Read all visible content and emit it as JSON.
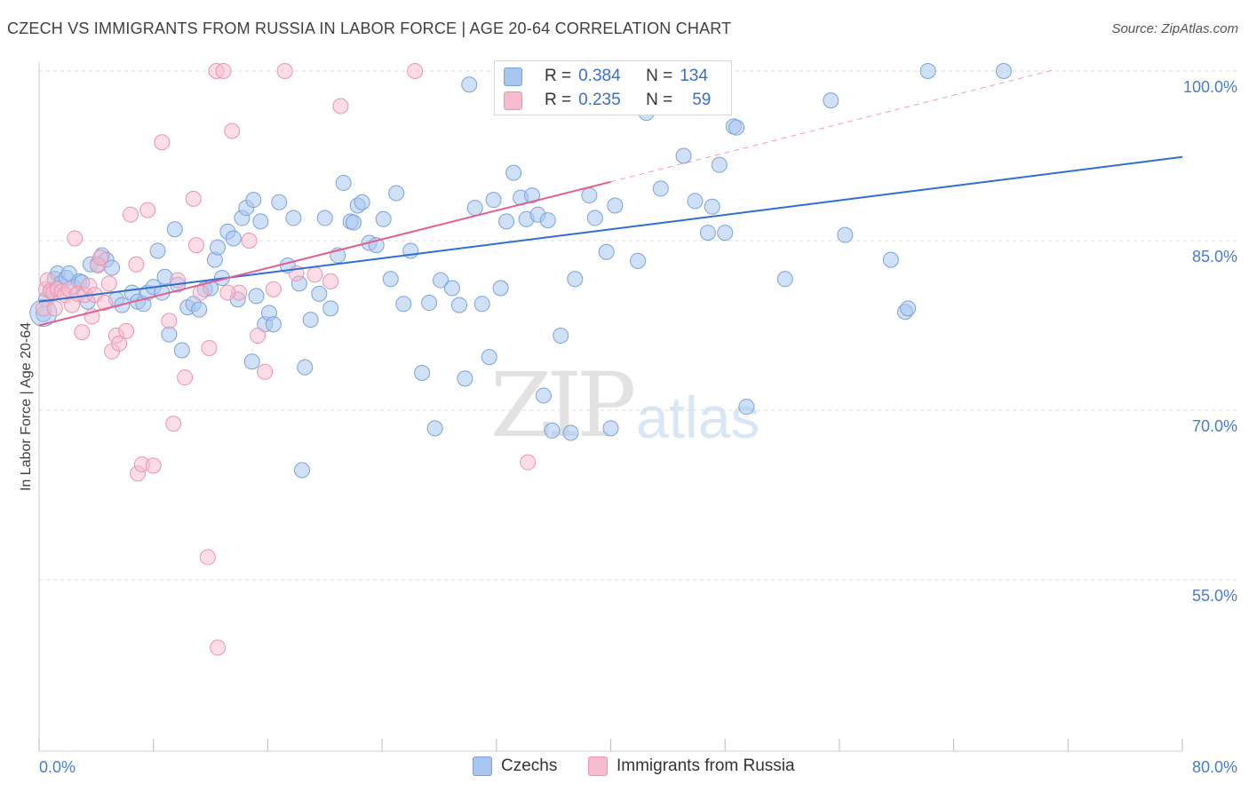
{
  "title": "CZECH VS IMMIGRANTS FROM RUSSIA IN LABOR FORCE | AGE 20-64 CORRELATION CHART",
  "source": "Source: ZipAtlas.com",
  "watermark": {
    "zip": "ZIP",
    "atlas": "atlas"
  },
  "legend": {
    "czechs": {
      "r_label": "R = ",
      "r_value": "0.384",
      "n_label": "N = ",
      "n_value": "134"
    },
    "russia": {
      "r_label": "R = ",
      "r_value": "0.235",
      "n_label": "N = ",
      "n_value": "59"
    }
  },
  "colors": {
    "czech_fill": "#a9c6ee",
    "czech_stroke": "#7aa3dc",
    "czech_line": "#2f6fd0",
    "russia_fill": "#f6bccd",
    "russia_stroke": "#ee93b0",
    "russia_line": "#e35e8c"
  },
  "chart_data": {
    "type": "scatter",
    "title": "CZECH VS IMMIGRANTS FROM RUSSIA IN LABOR FORCE | AGE 20-64 CORRELATION CHART",
    "xlabel": "",
    "ylabel": "In Labor Force | Age 20-64",
    "xlim": [
      0,
      80
    ],
    "ylim": [
      40,
      102
    ],
    "x_tick_labels": [
      "0.0%",
      "80.0%"
    ],
    "y_ticks": [
      55,
      70,
      85,
      100
    ],
    "y_tick_labels": [
      "55.0%",
      "70.0%",
      "85.0%",
      "100.0%"
    ],
    "legend_position": "top-center",
    "series": [
      {
        "name": "Czechs",
        "trend": {
          "x0": 0,
          "y0": 79.6,
          "x1": 80,
          "y1": 92.4
        },
        "points": [
          [
            0.3,
            78.5
          ],
          [
            0.5,
            79.8
          ],
          [
            0.8,
            80.6
          ],
          [
            1.1,
            81.6
          ],
          [
            1.3,
            82.1
          ],
          [
            1.5,
            81.2
          ],
          [
            1.9,
            81.7
          ],
          [
            2.1,
            82.1
          ],
          [
            2.4,
            80.9
          ],
          [
            2.8,
            81.4
          ],
          [
            3.0,
            81.3
          ],
          [
            3.4,
            79.6
          ],
          [
            3.6,
            82.9
          ],
          [
            4.1,
            82.9
          ],
          [
            4.4,
            83.7
          ],
          [
            4.7,
            83.3
          ],
          [
            5.1,
            82.6
          ],
          [
            5.4,
            79.8
          ],
          [
            5.8,
            79.3
          ],
          [
            6.5,
            80.4
          ],
          [
            6.9,
            79.6
          ],
          [
            7.3,
            79.4
          ],
          [
            7.6,
            80.4
          ],
          [
            8.0,
            80.9
          ],
          [
            8.3,
            84.1
          ],
          [
            8.6,
            80.4
          ],
          [
            8.8,
            81.8
          ],
          [
            9.1,
            76.7
          ],
          [
            9.5,
            86.0
          ],
          [
            9.7,
            81.1
          ],
          [
            10.0,
            75.3
          ],
          [
            10.4,
            79.1
          ],
          [
            10.8,
            79.4
          ],
          [
            11.2,
            78.9
          ],
          [
            11.6,
            80.7
          ],
          [
            12.0,
            80.8
          ],
          [
            12.3,
            83.3
          ],
          [
            12.5,
            84.4
          ],
          [
            12.8,
            81.7
          ],
          [
            13.2,
            85.8
          ],
          [
            13.6,
            85.2
          ],
          [
            13.9,
            79.8
          ],
          [
            14.2,
            87.0
          ],
          [
            14.5,
            87.9
          ],
          [
            14.9,
            74.3
          ],
          [
            15.2,
            80.1
          ],
          [
            15.5,
            86.7
          ],
          [
            15.8,
            77.6
          ],
          [
            16.1,
            78.6
          ],
          [
            16.4,
            77.6
          ],
          [
            16.8,
            88.4
          ],
          [
            17.4,
            82.8
          ],
          [
            17.8,
            87.0
          ],
          [
            18.2,
            81.2
          ],
          [
            18.6,
            73.8
          ],
          [
            19.0,
            78.0
          ],
          [
            19.6,
            80.3
          ],
          [
            20.0,
            87.0
          ],
          [
            20.4,
            79.0
          ],
          [
            20.9,
            83.7
          ],
          [
            21.3,
            90.1
          ],
          [
            21.8,
            86.7
          ],
          [
            22.0,
            86.6
          ],
          [
            22.3,
            88.1
          ],
          [
            22.6,
            88.4
          ],
          [
            23.1,
            84.8
          ],
          [
            23.6,
            84.6
          ],
          [
            24.1,
            86.9
          ],
          [
            24.6,
            81.6
          ],
          [
            25.0,
            89.2
          ],
          [
            25.5,
            79.4
          ],
          [
            26.0,
            84.1
          ],
          [
            26.8,
            73.3
          ],
          [
            27.3,
            79.5
          ],
          [
            27.7,
            68.4
          ],
          [
            28.1,
            81.5
          ],
          [
            28.9,
            80.8
          ],
          [
            29.4,
            79.3
          ],
          [
            29.8,
            72.8
          ],
          [
            30.1,
            98.8
          ],
          [
            30.5,
            87.9
          ],
          [
            31.0,
            79.4
          ],
          [
            31.5,
            74.7
          ],
          [
            31.8,
            88.6
          ],
          [
            32.3,
            80.8
          ],
          [
            32.7,
            86.7
          ],
          [
            33.2,
            91.0
          ],
          [
            33.7,
            88.8
          ],
          [
            34.1,
            86.9
          ],
          [
            34.5,
            89.0
          ],
          [
            34.9,
            87.3
          ],
          [
            35.3,
            71.3
          ],
          [
            35.6,
            86.8
          ],
          [
            35.9,
            68.2
          ],
          [
            36.5,
            76.6
          ],
          [
            37.2,
            68.0
          ],
          [
            37.5,
            81.6
          ],
          [
            38.5,
            89.0
          ],
          [
            38.9,
            87.0
          ],
          [
            39.7,
            84.0
          ],
          [
            40.0,
            68.4
          ],
          [
            40.3,
            88.1
          ],
          [
            41.3,
            100.2
          ],
          [
            41.9,
            83.2
          ],
          [
            42.5,
            96.3
          ],
          [
            42.9,
            100.0
          ],
          [
            43.5,
            89.6
          ],
          [
            44.4,
            97.0
          ],
          [
            45.1,
            92.5
          ],
          [
            45.9,
            88.5
          ],
          [
            46.3,
            100.2
          ],
          [
            46.8,
            85.7
          ],
          [
            47.1,
            88.0
          ],
          [
            47.6,
            91.7
          ],
          [
            48.0,
            85.7
          ],
          [
            48.6,
            95.1
          ],
          [
            48.8,
            95.0
          ],
          [
            49.5,
            70.3
          ],
          [
            52.2,
            81.6
          ],
          [
            55.4,
            97.4
          ],
          [
            56.4,
            85.5
          ],
          [
            59.6,
            83.3
          ],
          [
            60.6,
            78.7
          ],
          [
            60.8,
            79.0
          ],
          [
            62.2,
            100.0
          ],
          [
            67.5,
            100.0
          ],
          [
            18.4,
            64.7
          ],
          [
            15.0,
            88.6
          ]
        ]
      },
      {
        "name": "Immigrants from Russia",
        "trend": {
          "x0": 0,
          "y0": 77.5,
          "x1": 40,
          "y1": 90.2
        },
        "trend_extension": {
          "x0": 40,
          "y0": 90.2,
          "x1": 71,
          "y1": 100.1
        },
        "points": [
          [
            0.3,
            79.0
          ],
          [
            0.5,
            80.7
          ],
          [
            0.6,
            81.5
          ],
          [
            0.8,
            80.5
          ],
          [
            1.0,
            80.4
          ],
          [
            1.1,
            79.0
          ],
          [
            1.3,
            80.7
          ],
          [
            1.6,
            80.5
          ],
          [
            1.8,
            80.2
          ],
          [
            2.1,
            80.7
          ],
          [
            2.3,
            79.3
          ],
          [
            2.5,
            85.2
          ],
          [
            2.7,
            80.3
          ],
          [
            3.0,
            76.9
          ],
          [
            3.2,
            80.2
          ],
          [
            3.5,
            81.0
          ],
          [
            3.7,
            78.3
          ],
          [
            3.9,
            80.2
          ],
          [
            4.1,
            82.8
          ],
          [
            4.3,
            83.5
          ],
          [
            4.6,
            79.5
          ],
          [
            4.9,
            81.2
          ],
          [
            5.1,
            75.2
          ],
          [
            5.4,
            76.6
          ],
          [
            5.6,
            75.9
          ],
          [
            6.1,
            77.0
          ],
          [
            6.4,
            87.3
          ],
          [
            6.9,
            64.4
          ],
          [
            7.2,
            65.2
          ],
          [
            7.6,
            87.7
          ],
          [
            8.0,
            65.1
          ],
          [
            8.6,
            93.7
          ],
          [
            9.1,
            77.9
          ],
          [
            9.4,
            68.8
          ],
          [
            9.7,
            81.5
          ],
          [
            10.2,
            72.9
          ],
          [
            10.8,
            88.7
          ],
          [
            11.3,
            80.4
          ],
          [
            11.9,
            75.5
          ],
          [
            12.4,
            100.0
          ],
          [
            12.9,
            100.0
          ],
          [
            13.5,
            94.7
          ],
          [
            14.0,
            80.4
          ],
          [
            14.7,
            85.0
          ],
          [
            15.3,
            76.6
          ],
          [
            15.8,
            73.4
          ],
          [
            16.4,
            80.7
          ],
          [
            17.2,
            100.0
          ],
          [
            18.0,
            82.1
          ],
          [
            19.3,
            82.0
          ],
          [
            20.4,
            81.4
          ],
          [
            21.1,
            96.9
          ],
          [
            26.3,
            100.0
          ],
          [
            34.2,
            65.4
          ],
          [
            11.8,
            57.0
          ],
          [
            12.5,
            49.0
          ],
          [
            11.0,
            84.6
          ],
          [
            6.8,
            82.9
          ],
          [
            13.2,
            80.4
          ]
        ]
      }
    ]
  },
  "bottom_legend": {
    "czechs": "Czechs",
    "russia": "Immigrants from Russia"
  }
}
